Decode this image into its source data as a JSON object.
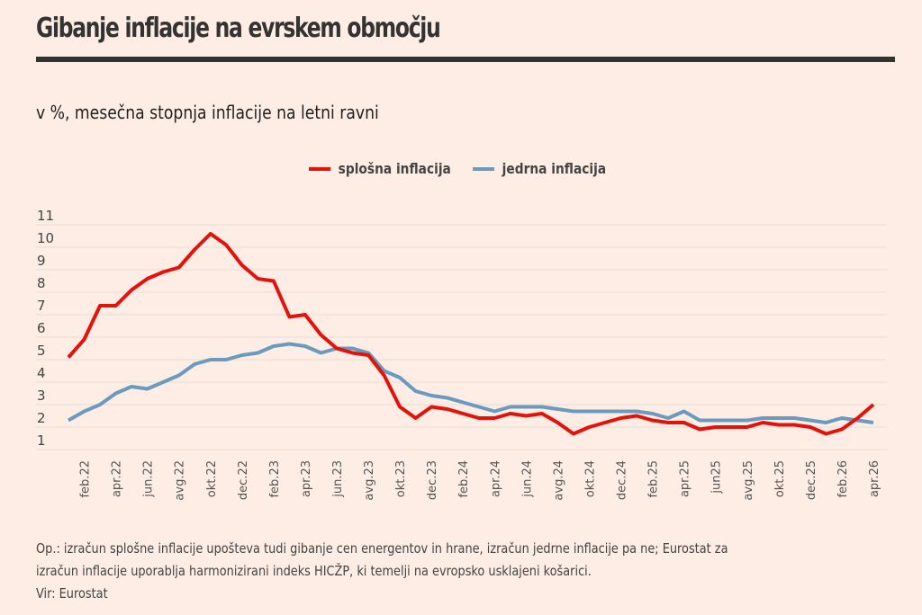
{
  "header": {
    "title": "Gibanje inflacije na evrskem območju",
    "subtitle": "v %, mesečna stopnja inflacije na letni ravni"
  },
  "colors": {
    "background": "#fdede4",
    "headline_inflation": "#e3120b",
    "core_inflation": "#6a9bbf",
    "gridline": "#f0e2da",
    "rule": "#333333"
  },
  "chart_data": {
    "type": "line",
    "title": "Gibanje inflacije na evrskem območju",
    "subtitle": "v %, mesečna stopnja inflacije na letni ravni",
    "xlabel": "",
    "ylabel": "",
    "ylim": [
      1,
      11
    ],
    "yticks": [
      "1",
      "2",
      "3",
      "4",
      "5",
      "6",
      "7",
      "8",
      "9",
      "10",
      "11"
    ],
    "grid": true,
    "legend_position": "top-center",
    "x": [
      "jan.22",
      "feb.22",
      "mar.22",
      "apr.22",
      "maj.22",
      "jun.22",
      "jul.22",
      "avg.22",
      "sep.22",
      "okt.22",
      "nov.22",
      "dec.22",
      "jan.23",
      "feb.23",
      "mar.23",
      "apr.23",
      "maj.23",
      "jun.23",
      "jul.23",
      "avg.23",
      "sep.23",
      "okt.23",
      "nov.23",
      "dec.23",
      "jan.24",
      "feb.24",
      "mar.24",
      "apr.24",
      "maj.24",
      "jun.24",
      "jul.24",
      "avg.24",
      "sep.24",
      "okt.24",
      "nov.24",
      "dec.24",
      "jan.25",
      "feb.25",
      "mar.25",
      "apr.25",
      "maj.25",
      "jun.25",
      "jul.25",
      "avg.25",
      "sep.25",
      "okt.25",
      "nov.25",
      "dec.25",
      "jan.26",
      "feb.26",
      "mar.26",
      "apr.26"
    ],
    "xtick_labels": [
      {
        "index": 1,
        "label": "feb.22"
      },
      {
        "index": 3,
        "label": "apr.22"
      },
      {
        "index": 5,
        "label": "jun.22"
      },
      {
        "index": 7,
        "label": "avg.22"
      },
      {
        "index": 9,
        "label": "okt.22"
      },
      {
        "index": 11,
        "label": "dec.22"
      },
      {
        "index": 13,
        "label": "feb.23"
      },
      {
        "index": 15,
        "label": "apr.23"
      },
      {
        "index": 17,
        "label": "jun.23"
      },
      {
        "index": 19,
        "label": "avg.23"
      },
      {
        "index": 21,
        "label": "okt.23"
      },
      {
        "index": 23,
        "label": "dec.23"
      },
      {
        "index": 25,
        "label": "feb.24"
      },
      {
        "index": 27,
        "label": "apr.24"
      },
      {
        "index": 29,
        "label": "jun.24"
      },
      {
        "index": 31,
        "label": "avg.24"
      },
      {
        "index": 33,
        "label": "okt.24"
      },
      {
        "index": 35,
        "label": "dec.24"
      },
      {
        "index": 37,
        "label": "feb.25"
      },
      {
        "index": 39,
        "label": "apr.25"
      },
      {
        "index": 41,
        "label": "jun25"
      },
      {
        "index": 43,
        "label": "avg.25"
      },
      {
        "index": 45,
        "label": "okt.25"
      },
      {
        "index": 47,
        "label": "dec.25"
      },
      {
        "index": 49,
        "label": "feb.26"
      },
      {
        "index": 51,
        "label": "apr.26"
      }
    ],
    "series": [
      {
        "name": "splošna inflacija",
        "color": "#e3120b",
        "values": [
          5.1,
          5.9,
          7.4,
          7.4,
          8.1,
          8.6,
          8.9,
          9.1,
          9.9,
          10.6,
          10.1,
          9.2,
          8.6,
          8.5,
          6.9,
          7.0,
          6.1,
          5.5,
          5.3,
          5.2,
          4.3,
          2.9,
          2.4,
          2.9,
          2.8,
          2.6,
          2.4,
          2.4,
          2.6,
          2.5,
          2.6,
          2.2,
          1.7,
          2.0,
          2.2,
          2.4,
          2.5,
          2.3,
          2.2,
          2.2,
          1.9,
          2.0,
          2.0,
          2.0,
          2.2,
          2.1,
          2.1,
          2.0,
          1.7,
          1.9,
          2.4,
          3.0
        ]
      },
      {
        "name": "jedrna inflacija",
        "color": "#6a9bbf",
        "values": [
          2.3,
          2.7,
          3.0,
          3.5,
          3.8,
          3.7,
          4.0,
          4.3,
          4.8,
          5.0,
          5.0,
          5.2,
          5.3,
          5.6,
          5.7,
          5.6,
          5.3,
          5.5,
          5.5,
          5.3,
          4.5,
          4.2,
          3.6,
          3.4,
          3.3,
          3.1,
          2.9,
          2.7,
          2.9,
          2.9,
          2.9,
          2.8,
          2.7,
          2.7,
          2.7,
          2.7,
          2.7,
          2.6,
          2.4,
          2.7,
          2.3,
          2.3,
          2.3,
          2.3,
          2.4,
          2.4,
          2.4,
          2.3,
          2.2,
          2.4,
          2.3,
          2.2
        ]
      }
    ]
  },
  "legend": {
    "items": [
      {
        "label": "splošna inflacija",
        "color": "#e3120b"
      },
      {
        "label": "jedrna inflacija",
        "color": "#6a9bbf"
      }
    ]
  },
  "footnote": {
    "line1": "Op.: izračun splošne inflacije upošteva tudi gibanje cen energentov in hrane, izračun jedrne inflacije pa ne; Eurostat za",
    "line2": "izračun inflacije uporablja harmonizirani indeks HICŽP, ki temelji na evropsko usklajeni košarici.",
    "source": "Vir: Eurostat"
  }
}
